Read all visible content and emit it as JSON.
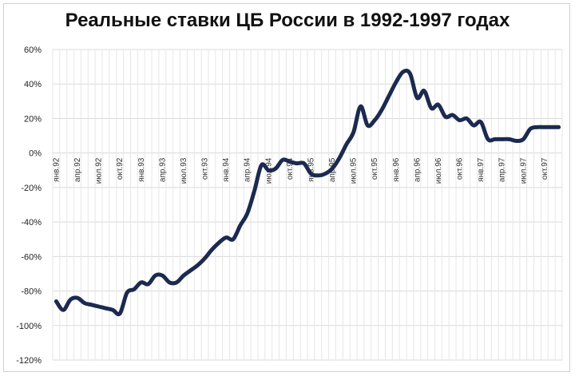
{
  "chart_data": {
    "type": "line",
    "title": "Реальные ставки ЦБ России в 1992-1997 годах",
    "xlabel": "",
    "ylabel": "",
    "ylim": [
      -120,
      60
    ],
    "y_tick_values": [
      60,
      40,
      20,
      0,
      -20,
      -40,
      -60,
      -80,
      -100,
      -120
    ],
    "y_tick_labels": [
      "60%",
      "40%",
      "20%",
      "0%",
      "-20%",
      "-40%",
      "-60%",
      "-80%",
      "-100%",
      "-120%"
    ],
    "x_tick_labels": [
      "янв.92",
      "апр.92",
      "июл.92",
      "окт.92",
      "янв.93",
      "апр.93",
      "июл.93",
      "окт.93",
      "янв.94",
      "апр.94",
      "июл.94",
      "окт.94",
      "янв.95",
      "апр.95",
      "июл.95",
      "окт.95",
      "янв.96",
      "апр.96",
      "июл.96",
      "окт.96",
      "янв.97",
      "апр.97",
      "июл.97",
      "окт.97"
    ],
    "grid": true,
    "line_color": "#1b2a4e",
    "x": [
      "янв.92",
      "фев.92",
      "мар.92",
      "апр.92",
      "май.92",
      "июн.92",
      "июл.92",
      "авг.92",
      "сен.92",
      "окт.92",
      "ноя.92",
      "дек.92",
      "янв.93",
      "фев.93",
      "мар.93",
      "апр.93",
      "май.93",
      "июн.93",
      "июл.93",
      "авг.93",
      "сен.93",
      "окт.93",
      "ноя.93",
      "дек.93",
      "янв.94",
      "фев.94",
      "мар.94",
      "апр.94",
      "май.94",
      "июн.94",
      "июл.94",
      "авг.94",
      "сен.94",
      "окт.94",
      "ноя.94",
      "дек.94",
      "янв.95",
      "фев.95",
      "мар.95",
      "апр.95",
      "май.95",
      "июн.95",
      "июл.95",
      "авг.95",
      "сен.95",
      "окт.95",
      "ноя.95",
      "дек.95",
      "янв.96",
      "фев.96",
      "мар.96",
      "апр.96",
      "май.96",
      "июн.96",
      "июл.96",
      "авг.96",
      "сен.96",
      "окт.96",
      "ноя.96",
      "дек.96",
      "янв.97",
      "фев.97",
      "мар.97",
      "апр.97",
      "май.97",
      "июн.97",
      "июл.97",
      "авг.97",
      "сен.97",
      "окт.97",
      "ноя.97",
      "дек.97"
    ],
    "values": [
      -86,
      -91,
      -85,
      -84,
      -87,
      -88,
      -89,
      -90,
      -91,
      -93,
      -81,
      -79,
      -75,
      -76,
      -71,
      -71,
      -75,
      -75,
      -71,
      -68,
      -65,
      -61,
      -56,
      -52,
      -49,
      -50,
      -42,
      -35,
      -22,
      -7,
      -10,
      -9,
      -4,
      -5,
      -6,
      -6,
      -12,
      -13,
      -12,
      -9,
      -3,
      5,
      12,
      27,
      16,
      19,
      25,
      33,
      41,
      47,
      46,
      32,
      36,
      26,
      28,
      21,
      22,
      19,
      20,
      16,
      18,
      8,
      8,
      8,
      8,
      7,
      8,
      14,
      15,
      15,
      15,
      15
    ]
  }
}
